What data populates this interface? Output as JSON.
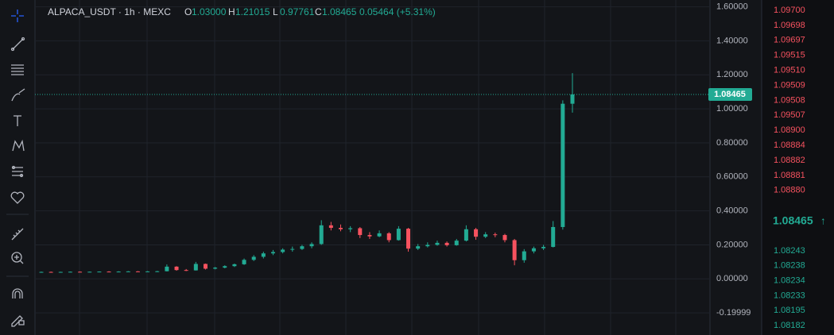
{
  "chart_data": {
    "type": "candlestick",
    "symbol": "ALPACA_USDT · 1h · MEXC",
    "ohlc_header": [
      {
        "key": "O",
        "text": "1.03000"
      },
      {
        "key": "H",
        "text": "1.21015"
      },
      {
        "key": "L",
        "text": "0.97761"
      },
      {
        "key": "C",
        "text": "1.08465"
      }
    ],
    "change_text": "0.05464 (+5.31%)",
    "up_color": "#22ab94",
    "down_color": "#f7525f",
    "open": [
      0.04,
      0.041,
      0.04,
      0.041,
      0.042,
      0.041,
      0.042,
      0.043,
      0.042,
      0.043,
      0.044,
      0.043,
      0.044,
      0.045,
      0.072,
      0.052,
      0.05,
      0.088,
      0.06,
      0.066,
      0.075,
      0.086,
      0.112,
      0.13,
      0.15,
      0.158,
      0.172,
      0.176,
      0.192,
      0.205,
      0.315,
      0.3,
      0.292,
      0.298,
      0.258,
      0.25,
      0.268,
      0.228,
      0.295,
      0.178,
      0.192,
      0.2,
      0.212,
      0.198,
      0.225,
      0.292,
      0.248,
      0.262,
      0.258,
      0.228,
      0.11,
      0.162,
      0.18,
      0.188,
      0.305,
      1.03
    ],
    "high": [
      0.043,
      0.043,
      0.042,
      0.043,
      0.044,
      0.043,
      0.044,
      0.045,
      0.045,
      0.046,
      0.046,
      0.046,
      0.047,
      0.085,
      0.075,
      0.058,
      0.1,
      0.09,
      0.07,
      0.08,
      0.09,
      0.12,
      0.14,
      0.16,
      0.17,
      0.18,
      0.19,
      0.2,
      0.215,
      0.345,
      0.335,
      0.32,
      0.31,
      0.305,
      0.275,
      0.285,
      0.275,
      0.31,
      0.3,
      0.205,
      0.215,
      0.225,
      0.22,
      0.235,
      0.315,
      0.3,
      0.275,
      0.272,
      0.265,
      0.235,
      0.175,
      0.19,
      0.2,
      0.34,
      1.05,
      1.21015
    ],
    "low": [
      0.038,
      0.039,
      0.038,
      0.039,
      0.04,
      0.039,
      0.04,
      0.041,
      0.04,
      0.041,
      0.042,
      0.041,
      0.04,
      0.044,
      0.048,
      0.046,
      0.049,
      0.055,
      0.056,
      0.062,
      0.07,
      0.082,
      0.105,
      0.12,
      0.14,
      0.15,
      0.16,
      0.17,
      0.18,
      0.2,
      0.285,
      0.28,
      0.275,
      0.24,
      0.235,
      0.245,
      0.215,
      0.225,
      0.16,
      0.17,
      0.185,
      0.195,
      0.19,
      0.195,
      0.22,
      0.23,
      0.24,
      0.245,
      0.215,
      0.08,
      0.095,
      0.15,
      0.17,
      0.185,
      0.29,
      0.97761
    ],
    "close": [
      0.041,
      0.04,
      0.041,
      0.042,
      0.041,
      0.042,
      0.043,
      0.042,
      0.043,
      0.044,
      0.043,
      0.044,
      0.045,
      0.072,
      0.052,
      0.05,
      0.088,
      0.06,
      0.066,
      0.075,
      0.086,
      0.112,
      0.13,
      0.15,
      0.158,
      0.172,
      0.176,
      0.192,
      0.205,
      0.315,
      0.3,
      0.292,
      0.298,
      0.258,
      0.25,
      0.268,
      0.228,
      0.295,
      0.178,
      0.192,
      0.2,
      0.212,
      0.198,
      0.225,
      0.292,
      0.248,
      0.262,
      0.258,
      0.228,
      0.11,
      0.162,
      0.18,
      0.188,
      0.305,
      1.03,
      1.08465
    ],
    "ylim": [
      -0.33,
      1.64
    ],
    "yticks": [
      {
        "value": 1.6,
        "label": "1.60000"
      },
      {
        "value": 1.4,
        "label": "1.40000"
      },
      {
        "value": 1.2,
        "label": "1.20000"
      },
      {
        "value": 1.0,
        "label": "1.00000"
      },
      {
        "value": 0.8,
        "label": "0.80000"
      },
      {
        "value": 0.6,
        "label": "0.60000"
      },
      {
        "value": 0.4,
        "label": "0.40000"
      },
      {
        "value": 0.2,
        "label": "0.20000"
      },
      {
        "value": 0,
        "label": "0.00000"
      },
      {
        "value": -0.19999,
        "label": "-0.19999"
      }
    ],
    "grid": true,
    "last_price_label": "1.08465"
  },
  "order_book": {
    "asks": [
      "1.09700",
      "1.09698",
      "1.09697",
      "1.09515",
      "1.09510",
      "1.09509",
      "1.09508",
      "1.09507",
      "1.08900",
      "1.08884",
      "1.08882",
      "1.08881",
      "1.08880"
    ],
    "last": "1.08465",
    "last_arrow": "↑",
    "bids": [
      "1.08243",
      "1.08238",
      "1.08234",
      "1.08233",
      "1.08195",
      "1.08182"
    ]
  }
}
